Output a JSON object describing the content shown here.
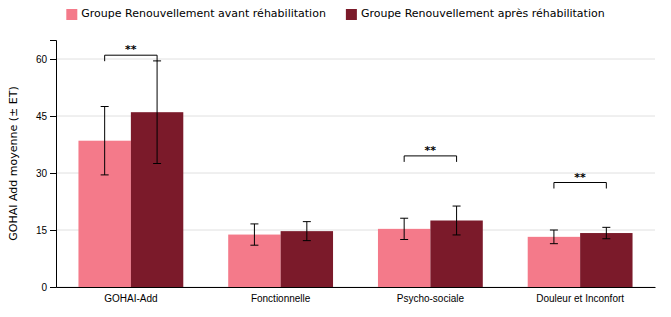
{
  "chart_data": {
    "type": "bar",
    "categories": [
      "GOHAI-Add",
      "Fonctionnelle",
      "Psycho-sociale",
      "Douleur et Inconfort"
    ],
    "series": [
      {
        "name": "Groupe Renouvellement avant réhabilitation",
        "color": "#F47A8A",
        "values": [
          38.5,
          13.8,
          15.3,
          13.2
        ],
        "errors": [
          9.0,
          2.8,
          2.8,
          1.8
        ]
      },
      {
        "name": "Groupe Renouvellement après réhabilitation",
        "color": "#7B1A2A",
        "values": [
          46.0,
          14.7,
          17.5,
          14.2
        ],
        "errors": [
          13.5,
          2.5,
          3.8,
          1.5
        ]
      }
    ],
    "ylabel": "GOHAI Add moyenne (± ET)",
    "ylim": [
      0,
      65
    ],
    "yticks": [
      0,
      15,
      30,
      45,
      60
    ],
    "grid": true,
    "annotations": [
      {
        "text": "**",
        "category": "GOHAI-Add",
        "y": 61.0
      },
      {
        "text": "**",
        "category": "Psycho-sociale",
        "y": 34.5
      },
      {
        "text": "**",
        "category": "Douleur et Inconfort",
        "y": 27.5
      }
    ]
  }
}
